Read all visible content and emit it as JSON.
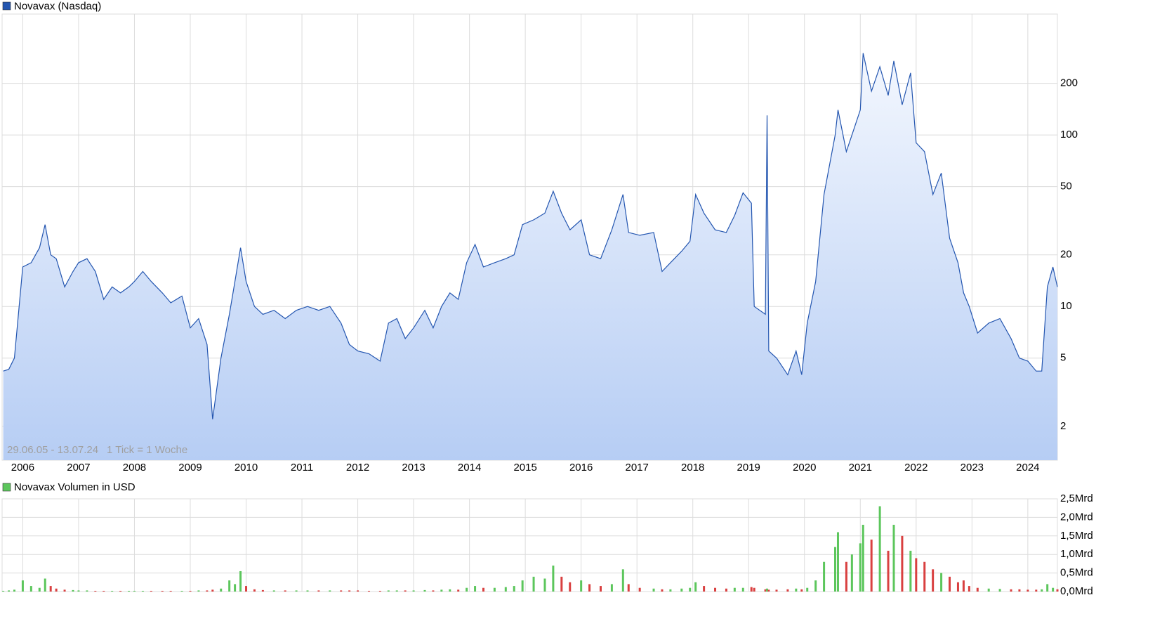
{
  "chart_data": [
    {
      "type": "line",
      "x": [
        2005.65,
        2005.75,
        2005.85,
        2006.0,
        2006.15,
        2006.3,
        2006.4,
        2006.5,
        2006.6,
        2006.75,
        2006.9,
        2007.0,
        2007.15,
        2007.3,
        2007.45,
        2007.6,
        2007.75,
        2007.9,
        2008.0,
        2008.15,
        2008.3,
        2008.5,
        2008.65,
        2008.85,
        2009.0,
        2009.15,
        2009.3,
        2009.4,
        2009.55,
        2009.7,
        2009.8,
        2009.9,
        2010.0,
        2010.15,
        2010.3,
        2010.5,
        2010.7,
        2010.9,
        2011.1,
        2011.3,
        2011.5,
        2011.7,
        2011.85,
        2012.0,
        2012.2,
        2012.4,
        2012.55,
        2012.7,
        2012.85,
        2013.0,
        2013.2,
        2013.35,
        2013.5,
        2013.65,
        2013.8,
        2013.95,
        2014.1,
        2014.25,
        2014.45,
        2014.65,
        2014.8,
        2014.95,
        2015.15,
        2015.35,
        2015.5,
        2015.65,
        2015.8,
        2016.0,
        2016.15,
        2016.35,
        2016.55,
        2016.75,
        2016.85,
        2017.05,
        2017.3,
        2017.45,
        2017.6,
        2017.8,
        2017.95,
        2018.05,
        2018.2,
        2018.4,
        2018.6,
        2018.75,
        2018.9,
        2019.05,
        2019.1,
        2019.3,
        2019.33,
        2019.36,
        2019.5,
        2019.7,
        2019.85,
        2019.95,
        2020.05,
        2020.2,
        2020.35,
        2020.55,
        2020.6,
        2020.75,
        2020.85,
        2021.0,
        2021.05,
        2021.2,
        2021.35,
        2021.5,
        2021.6,
        2021.75,
        2021.9,
        2022.0,
        2022.15,
        2022.3,
        2022.45,
        2022.6,
        2022.75,
        2022.85,
        2022.95,
        2023.1,
        2023.3,
        2023.5,
        2023.7,
        2023.85,
        2024.0,
        2024.15,
        2024.25,
        2024.35,
        2024.45,
        2024.53
      ],
      "series": [
        {
          "name": "Novavax (Nasdaq)",
          "color": "#2456b0",
          "values": [
            4.2,
            4.3,
            5,
            17,
            18,
            22,
            30,
            20,
            19,
            13,
            16,
            18,
            19,
            16,
            11,
            13,
            12,
            13,
            14,
            16,
            14,
            12,
            10.5,
            11.5,
            7.5,
            8.5,
            6,
            2.2,
            5,
            9,
            14,
            22,
            14,
            10,
            9,
            9.5,
            8.5,
            9.5,
            10,
            9.5,
            10,
            8,
            6,
            5.5,
            5.3,
            4.8,
            8,
            8.5,
            6.5,
            7.5,
            9.5,
            7.5,
            10,
            12,
            11,
            18,
            23,
            17,
            18,
            19,
            20,
            30,
            32,
            35,
            47,
            35,
            28,
            32,
            20,
            19,
            28,
            45,
            27,
            26,
            27,
            16,
            18,
            21,
            24,
            45,
            35,
            28,
            27,
            34,
            46,
            40,
            10,
            9,
            130,
            5.5,
            5,
            4,
            5.5,
            4,
            8,
            14,
            45,
            100,
            140,
            80,
            100,
            140,
            300,
            180,
            250,
            170,
            270,
            150,
            230,
            90,
            80,
            45,
            60,
            25,
            18,
            12,
            10,
            7,
            8,
            8.5,
            6.5,
            5,
            4.8,
            4.2,
            4.2,
            13,
            17,
            13
          ]
        }
      ],
      "xlim": [
        2005.63,
        2024.53
      ],
      "xticks": [
        2006,
        2007,
        2008,
        2009,
        2010,
        2011,
        2012,
        2013,
        2014,
        2015,
        2016,
        2017,
        2018,
        2019,
        2020,
        2021,
        2022,
        2023,
        2024
      ],
      "ylim": [
        1.27,
        507
      ],
      "yticks": [
        2,
        5,
        10,
        20,
        50,
        100,
        200
      ],
      "log_scale": true,
      "grid": true,
      "annotations": [
        "29.06.05 - 13.07.24",
        "1 Tick = 1 Woche"
      ]
    },
    {
      "type": "bar",
      "series": [
        {
          "name": "Novavax Volumen in USD",
          "color": "#5cc65c",
          "down_color": "#d94040",
          "values": [
            0.02,
            0.03,
            0.05,
            0.3,
            0.15,
            0.1,
            0.35,
            0.15,
            0.08,
            0.05,
            0.04,
            0.03,
            0.03,
            0.02,
            0.02,
            0.02,
            0.02,
            0.02,
            0.02,
            0.02,
            0.02,
            0.02,
            0.02,
            0.02,
            0.02,
            0.03,
            0.03,
            0.05,
            0.08,
            0.3,
            0.2,
            0.55,
            0.15,
            0.06,
            0.04,
            0.03,
            0.03,
            0.03,
            0.03,
            0.03,
            0.03,
            0.03,
            0.03,
            0.03,
            0.02,
            0.02,
            0.03,
            0.03,
            0.03,
            0.03,
            0.04,
            0.03,
            0.05,
            0.06,
            0.05,
            0.1,
            0.15,
            0.1,
            0.1,
            0.12,
            0.15,
            0.3,
            0.4,
            0.35,
            0.7,
            0.4,
            0.25,
            0.3,
            0.2,
            0.15,
            0.2,
            0.6,
            0.2,
            0.1,
            0.08,
            0.06,
            0.06,
            0.08,
            0.1,
            0.25,
            0.15,
            0.1,
            0.08,
            0.1,
            0.1,
            0.12,
            0.1,
            0.06,
            0.08,
            0.05,
            0.05,
            0.06,
            0.08,
            0.06,
            0.1,
            0.3,
            0.8,
            1.2,
            1.6,
            0.8,
            1.0,
            1.3,
            1.8,
            1.4,
            2.3,
            1.1,
            1.8,
            1.5,
            1.1,
            0.9,
            0.8,
            0.6,
            0.5,
            0.4,
            0.25,
            0.3,
            0.15,
            0.1,
            0.08,
            0.07,
            0.06,
            0.06,
            0.05,
            0.05,
            0.06,
            0.2,
            0.1,
            0.06
          ]
        }
      ],
      "ylim": [
        0,
        2.5
      ],
      "yticks": [
        {
          "value": 0,
          "label": "0,0Mrd"
        },
        {
          "value": 0.5,
          "label": "0,5Mrd"
        },
        {
          "value": 1.0,
          "label": "1,0Mrd"
        },
        {
          "value": 1.5,
          "label": "1,5Mrd"
        },
        {
          "value": 2.0,
          "label": "2,0Mrd"
        },
        {
          "value": 2.5,
          "label": "2,5Mrd"
        }
      ],
      "grid": true
    }
  ]
}
